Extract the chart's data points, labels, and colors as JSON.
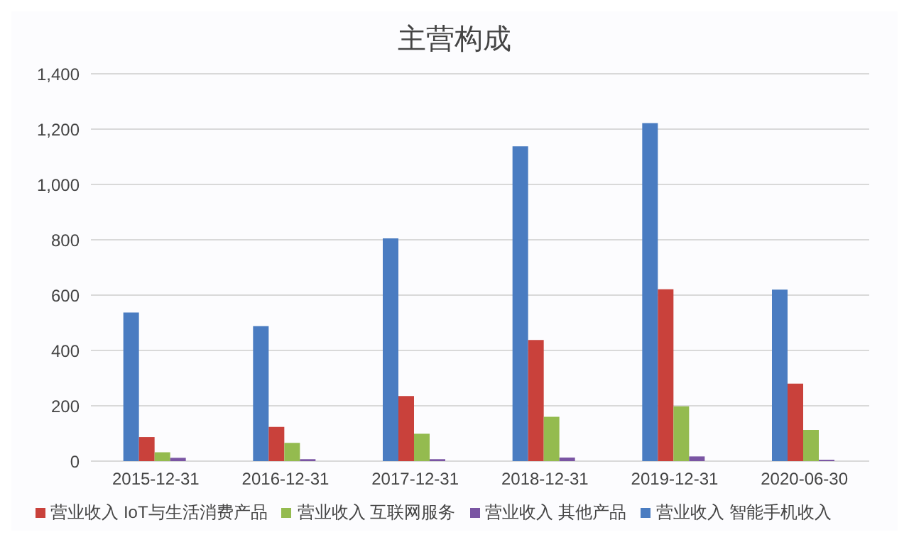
{
  "chart_data": {
    "type": "bar",
    "title": "主营构成",
    "categories": [
      "2015-12-31",
      "2016-12-31",
      "2017-12-31",
      "2018-12-31",
      "2019-12-31",
      "2020-06-30"
    ],
    "series": [
      {
        "name": "营业收入 智能手机收入",
        "color": "#4a7cc1",
        "values": [
          537,
          488,
          805,
          1138,
          1222,
          620
        ]
      },
      {
        "name": "营业收入 IoT与生活消费产品",
        "color": "#c9413b",
        "values": [
          87,
          124,
          235,
          438,
          621,
          280
        ]
      },
      {
        "name": "营业收入 互联网服务",
        "color": "#94bb4f",
        "values": [
          32,
          66,
          99,
          160,
          198,
          113
        ]
      },
      {
        "name": "营业收入 其他产品",
        "color": "#7a55a3",
        "values": [
          12,
          7,
          7,
          13,
          17,
          5
        ]
      }
    ],
    "ylim": [
      0,
      1400
    ],
    "yticks": [
      0,
      200,
      400,
      600,
      800,
      {
        "value": 1000,
        "label": "1,000"
      },
      {
        "value": 1200,
        "label": "1,200"
      },
      {
        "value": 1400,
        "label": "1,400"
      }
    ],
    "grid": "y",
    "legend": "bottom"
  }
}
